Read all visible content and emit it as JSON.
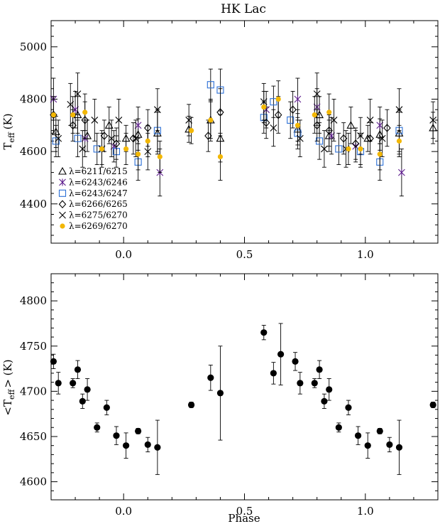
{
  "colors": {
    "black": "#000000",
    "purple": "#5b1a8b",
    "blue": "#2b6fd6",
    "gold": "#f2b705"
  },
  "chart_data": [
    {
      "type": "scatter",
      "title": "HK Lac",
      "xlabel": "",
      "ylabel": "T",
      "ylabel_sub": "eff",
      "ylabel_unit": "(K)",
      "xlim": [
        -0.3,
        1.3
      ],
      "ylim": [
        4250,
        5100
      ],
      "xticks": [
        0.0,
        0.5,
        1.0
      ],
      "xtick_labels": [
        "0.0",
        "0.5",
        "1.0"
      ],
      "yticks": [
        4400,
        4600,
        4800,
        5000
      ],
      "ytick_labels": [
        "4400",
        "4600",
        "4800",
        "5000"
      ],
      "legend_position": "lower-left",
      "series": [
        {
          "name": "λ=6211/6215",
          "marker": "triangle",
          "color": "#000000",
          "x": [
            -0.28,
            -0.19,
            -0.15,
            -0.06,
            0.01,
            0.06,
            0.14,
            0.27,
            0.36,
            0.4,
            0.72,
            0.81,
            0.85,
            0.94,
            1.01,
            1.06,
            1.14,
            1.28
          ],
          "y": [
            4675,
            4740,
            4660,
            4700,
            4650,
            4665,
            4670,
            4685,
            4720,
            4650,
            4685,
            4740,
            4660,
            4700,
            4650,
            4665,
            4670,
            4690
          ],
          "err": [
            60,
            70,
            60,
            70,
            50,
            60,
            80,
            50,
            80,
            90,
            60,
            70,
            60,
            70,
            50,
            60,
            80,
            60
          ]
        },
        {
          "name": "λ=6243/6246",
          "marker": "asterisk",
          "color": "#5b1a8b",
          "x": [
            -0.29,
            -0.2,
            -0.16,
            -0.04,
            0.06,
            0.15,
            0.59,
            0.72,
            0.8,
            0.86,
            0.96,
            1.06,
            1.15
          ],
          "y": [
            4800,
            4760,
            4650,
            4620,
            4700,
            4520,
            4760,
            4800,
            4770,
            4660,
            4620,
            4700,
            4520
          ],
          "err": [
            80,
            70,
            70,
            60,
            70,
            90,
            70,
            80,
            70,
            70,
            60,
            70,
            90
          ]
        },
        {
          "name": "λ=6243/6247",
          "marker": "square",
          "color": "#2b6fd6",
          "x": [
            -0.28,
            -0.19,
            -0.11,
            -0.03,
            0.06,
            0.14,
            0.36,
            0.4,
            0.58,
            0.62,
            0.69,
            0.72,
            0.81,
            0.89,
            0.98,
            1.06,
            1.14
          ],
          "y": [
            4640,
            4650,
            4610,
            4600,
            4560,
            4680,
            4855,
            4835,
            4730,
            4790,
            4720,
            4670,
            4640,
            4610,
            4600,
            4560,
            4680
          ],
          "err": [
            60,
            70,
            60,
            60,
            70,
            80,
            60,
            80,
            60,
            60,
            70,
            60,
            70,
            60,
            60,
            70,
            80
          ]
        },
        {
          "name": "λ=6266/6265",
          "marker": "diamond",
          "color": "#000000",
          "x": [
            -0.29,
            -0.21,
            -0.16,
            -0.08,
            -0.03,
            0.04,
            0.1,
            0.35,
            0.4,
            0.59,
            0.64,
            0.7,
            0.8,
            0.85,
            0.91,
            0.96,
            1.02,
            1.09
          ],
          "y": [
            4740,
            4700,
            4720,
            4660,
            4630,
            4650,
            4690,
            4660,
            4750,
            4710,
            4740,
            4760,
            4700,
            4680,
            4650,
            4630,
            4650,
            4690
          ],
          "err": [
            70,
            60,
            70,
            60,
            60,
            60,
            70,
            60,
            90,
            60,
            70,
            70,
            60,
            60,
            60,
            60,
            60,
            70
          ]
        },
        {
          "name": "λ=6275/6270",
          "marker": "x",
          "color": "#000000",
          "x": [
            -0.27,
            -0.22,
            -0.19,
            -0.17,
            -0.12,
            -0.09,
            -0.05,
            -0.02,
            0.05,
            0.1,
            0.14,
            0.27,
            0.58,
            0.62,
            0.73,
            0.8,
            0.83,
            0.87,
            0.92,
            0.98,
            1.02,
            1.07,
            1.14,
            1.28
          ],
          "y": [
            4650,
            4780,
            4820,
            4610,
            4720,
            4610,
            4650,
            4720,
            4650,
            4600,
            4760,
            4720,
            4790,
            4690,
            4650,
            4820,
            4610,
            4720,
            4610,
            4660,
            4720,
            4650,
            4760,
            4720
          ],
          "err": [
            70,
            80,
            80,
            70,
            80,
            70,
            70,
            80,
            70,
            70,
            80,
            60,
            70,
            70,
            70,
            80,
            70,
            80,
            70,
            70,
            80,
            70,
            80,
            70
          ]
        },
        {
          "name": "λ=6269/6270",
          "marker": "dot",
          "color": "#f2b705",
          "x": [
            -0.29,
            -0.21,
            -0.16,
            -0.09,
            0.01,
            0.06,
            0.1,
            0.15,
            0.28,
            0.36,
            0.4,
            0.58,
            0.64,
            0.72,
            0.79,
            0.85,
            0.93,
            0.98,
            1.06,
            1.14
          ],
          "y": [
            4740,
            4740,
            4750,
            4610,
            4610,
            4590,
            4640,
            4580,
            4680,
            4720,
            4580,
            4770,
            4800,
            4700,
            4740,
            4750,
            4610,
            4610,
            4590,
            4640
          ],
          "err": [
            70,
            70,
            70,
            60,
            60,
            60,
            60,
            60,
            50,
            70,
            90,
            60,
            70,
            60,
            70,
            70,
            60,
            60,
            60,
            60
          ]
        }
      ]
    },
    {
      "type": "scatter",
      "title": "",
      "xlabel": "Phase",
      "ylabel": "<T",
      "ylabel_sub": "eff",
      "ylabel_unit": "> (K)",
      "xlim": [
        -0.3,
        1.3
      ],
      "ylim": [
        4580,
        4830
      ],
      "xticks": [
        0.0,
        0.5,
        1.0
      ],
      "xtick_labels": [
        "0.0",
        "0.5",
        "1.0"
      ],
      "yticks": [
        4600,
        4650,
        4700,
        4750,
        4800
      ],
      "ytick_labels": [
        "4600",
        "4650",
        "4700",
        "4750",
        "4800"
      ],
      "series": [
        {
          "marker": "filled-circle",
          "color": "#000000",
          "x": [
            -0.29,
            -0.27,
            -0.21,
            -0.19,
            -0.17,
            -0.15,
            -0.11,
            -0.07,
            -0.03,
            0.01,
            0.06,
            0.1,
            0.14,
            0.28,
            0.36,
            0.4,
            0.58,
            0.62,
            0.65,
            0.71,
            0.73,
            0.79,
            0.81,
            0.83,
            0.85,
            0.89,
            0.93,
            0.97,
            1.01,
            1.06,
            1.1,
            1.14,
            1.28
          ],
          "y": [
            4733,
            4709,
            4709,
            4724,
            4689,
            4702,
            4660,
            4682,
            4651,
            4640,
            4656,
            4641,
            4638,
            4685,
            4715,
            4698,
            4765,
            4720,
            4741,
            4733,
            4709,
            4709,
            4724,
            4689,
            4702,
            4660,
            4682,
            4651,
            4640,
            4656,
            4641,
            4638,
            4685
          ],
          "err": [
            8,
            12,
            5,
            10,
            8,
            12,
            5,
            8,
            10,
            14,
            3,
            8,
            30,
            3,
            14,
            52,
            8,
            12,
            34,
            10,
            12,
            5,
            10,
            8,
            12,
            5,
            8,
            10,
            14,
            3,
            8,
            30,
            3
          ]
        }
      ]
    }
  ]
}
